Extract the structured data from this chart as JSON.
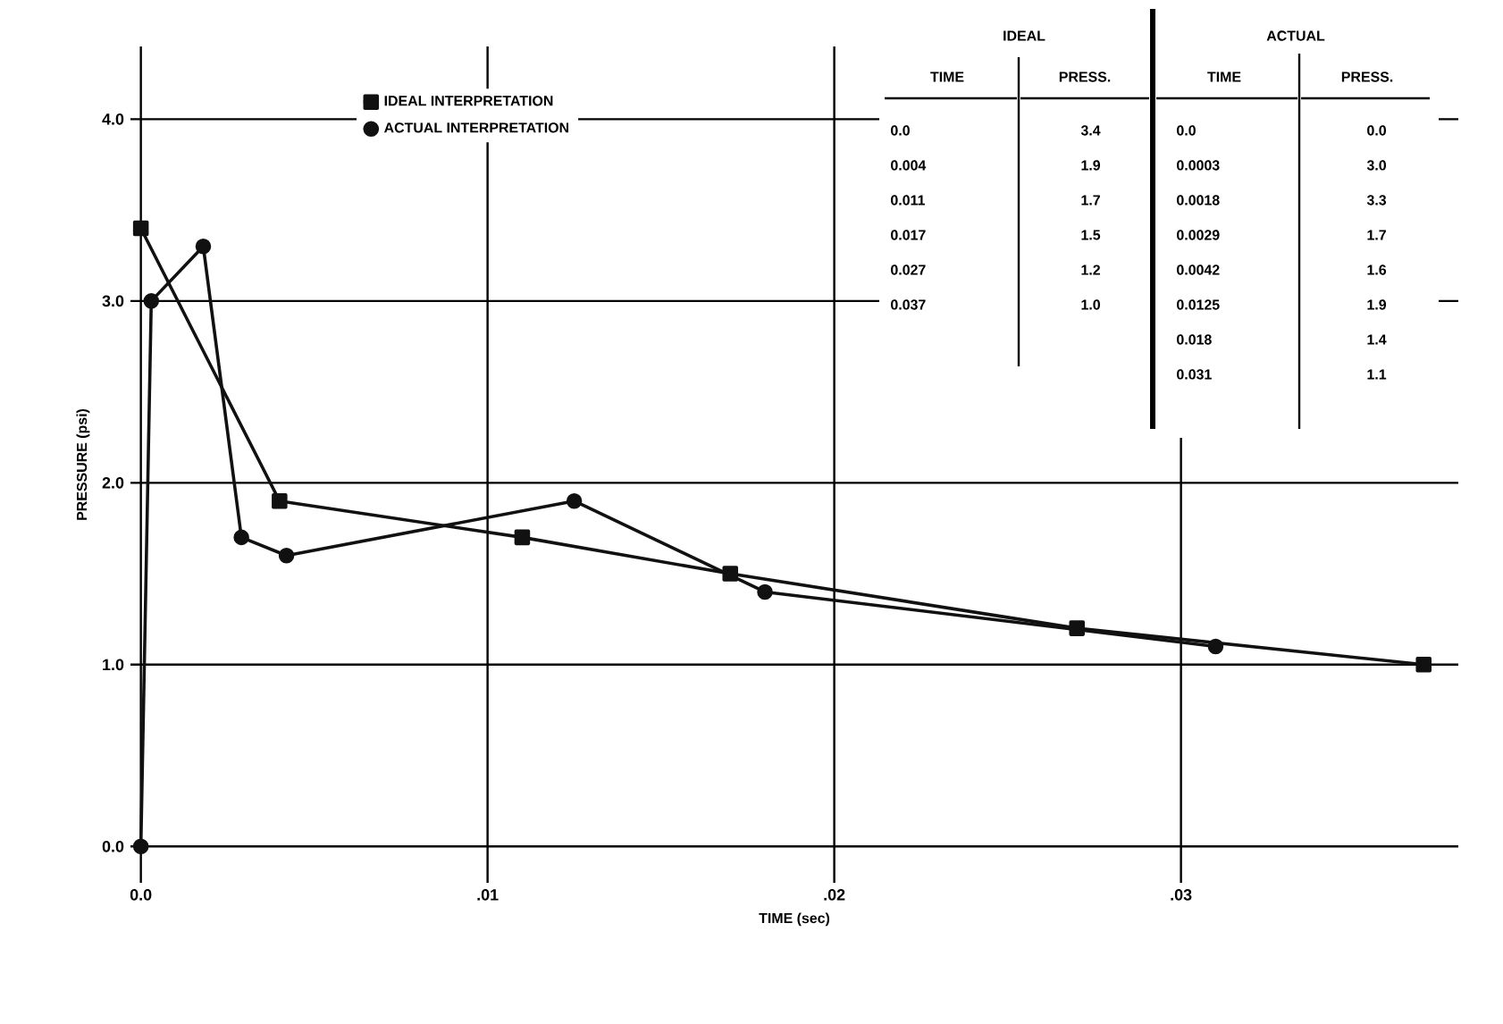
{
  "chart_data": {
    "type": "line",
    "xlabel": "TIME (sec)",
    "ylabel": "PRESSURE (psi)",
    "series": [
      {
        "name": "IDEAL INTERPRETATION",
        "color": "#111111",
        "marker": "square",
        "x": [
          0.0,
          0.004,
          0.011,
          0.017,
          0.027,
          0.037
        ],
        "values": [
          3.4,
          1.9,
          1.7,
          1.5,
          1.2,
          1.0
        ]
      },
      {
        "name": "ACTUAL INTERPRETATION",
        "color": "#111111",
        "marker": "circle",
        "x": [
          0.0,
          0.0003,
          0.0018,
          0.0029,
          0.0042,
          0.0125,
          0.018,
          0.031
        ],
        "values": [
          0.0,
          3.0,
          3.3,
          1.7,
          1.6,
          1.9,
          1.4,
          1.1
        ]
      }
    ],
    "annotations": [
      "IDEAL",
      "ACTUAL",
      "TIME",
      "PRESS.",
      "TIME",
      "PRESS.",
      "0.0",
      "0.004",
      "0.011",
      "0.017",
      "0.027",
      "0.037",
      "3.4",
      "1.9",
      "1.7",
      "1.5",
      "1.2",
      "1.0",
      "0.0",
      "0.0003",
      "0.0018",
      "0.0029",
      "0.0042",
      "0.0125",
      "0.018",
      "0.031",
      "0.0",
      "3.0",
      "3.3",
      "1.7",
      "1.6",
      "1.9",
      "1.4",
      "1.1"
    ],
    "xlim": [
      -0.0003,
      0.038
    ],
    "ylim": [
      -0.2,
      4.4
    ],
    "xticks": [
      {
        "value": 0,
        "label": "0.0"
      },
      {
        "value": 0.01,
        "label": ".01"
      },
      {
        "value": 0.02,
        "label": ".02"
      },
      {
        "value": 0.03,
        "label": ".03"
      }
    ],
    "yticks": [
      {
        "value": 0,
        "label": "0.0"
      },
      {
        "value": 1,
        "label": "1.0"
      },
      {
        "value": 2,
        "label": "2.0"
      },
      {
        "value": 3,
        "label": "3.0"
      },
      {
        "value": 4,
        "label": "4.0"
      }
    ],
    "grid": true,
    "legend": "top left",
    "line_style": "solid"
  }
}
